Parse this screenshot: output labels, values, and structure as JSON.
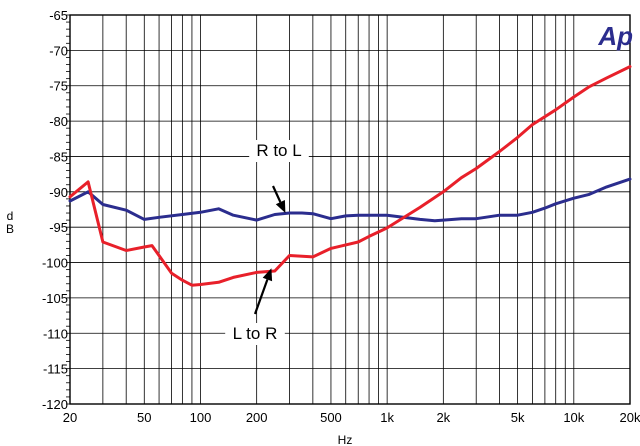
{
  "chart_data": {
    "type": "line",
    "logo": "Ap",
    "xlabel": "Hz",
    "ylabel": "dB",
    "xscale": "log",
    "xlim": [
      20,
      20000
    ],
    "ylim": [
      -120,
      -65
    ],
    "grid": true,
    "x_ticks": [
      {
        "value": 20,
        "label": "20"
      },
      {
        "value": 50,
        "label": "50"
      },
      {
        "value": 100,
        "label": "100"
      },
      {
        "value": 200,
        "label": "200"
      },
      {
        "value": 500,
        "label": "500"
      },
      {
        "value": 1000,
        "label": "1k"
      },
      {
        "value": 2000,
        "label": "2k"
      },
      {
        "value": 5000,
        "label": "5k"
      },
      {
        "value": 10000,
        "label": "10k"
      },
      {
        "value": 20000,
        "label": "20k"
      }
    ],
    "y_ticks": [
      {
        "value": -65,
        "label": "-65"
      },
      {
        "value": -70,
        "label": "-70"
      },
      {
        "value": -75,
        "label": "-75"
      },
      {
        "value": -80,
        "label": "-80"
      },
      {
        "value": -85,
        "label": "-85"
      },
      {
        "value": -90,
        "label": "-90"
      },
      {
        "value": -95,
        "label": "-95"
      },
      {
        "value": -100,
        "label": "-100"
      },
      {
        "value": -105,
        "label": "-105"
      },
      {
        "value": -110,
        "label": "-110"
      },
      {
        "value": -115,
        "label": "-115"
      },
      {
        "value": -120,
        "label": "-120"
      }
    ],
    "series": [
      {
        "key": "r_to_l",
        "color": "#2b2d8e",
        "points": [
          [
            20,
            -91.3
          ],
          [
            25,
            -90.0
          ],
          [
            30,
            -91.8
          ],
          [
            40,
            -92.6
          ],
          [
            50,
            -93.9
          ],
          [
            60,
            -93.6
          ],
          [
            80,
            -93.2
          ],
          [
            100,
            -92.9
          ],
          [
            125,
            -92.4
          ],
          [
            150,
            -93.3
          ],
          [
            200,
            -94.0
          ],
          [
            250,
            -93.2
          ],
          [
            300,
            -93.0
          ],
          [
            350,
            -93.0
          ],
          [
            400,
            -93.1
          ],
          [
            500,
            -93.8
          ],
          [
            600,
            -93.4
          ],
          [
            700,
            -93.3
          ],
          [
            800,
            -93.3
          ],
          [
            1000,
            -93.3
          ],
          [
            1500,
            -93.9
          ],
          [
            1800,
            -94.1
          ],
          [
            2000,
            -94.0
          ],
          [
            2500,
            -93.8
          ],
          [
            3000,
            -93.8
          ],
          [
            4000,
            -93.3
          ],
          [
            5000,
            -93.3
          ],
          [
            6000,
            -92.9
          ],
          [
            7000,
            -92.3
          ],
          [
            8000,
            -91.7
          ],
          [
            10000,
            -90.9
          ],
          [
            12000,
            -90.4
          ],
          [
            15000,
            -89.3
          ],
          [
            20000,
            -88.2
          ]
        ]
      },
      {
        "key": "l_to_r",
        "color": "#e8202a",
        "points": [
          [
            20,
            -90.7
          ],
          [
            25,
            -88.6
          ],
          [
            30,
            -97.1
          ],
          [
            40,
            -98.3
          ],
          [
            50,
            -97.8
          ],
          [
            55,
            -97.6
          ],
          [
            70,
            -101.5
          ],
          [
            80,
            -102.5
          ],
          [
            90,
            -103.2
          ],
          [
            100,
            -103.1
          ],
          [
            125,
            -102.8
          ],
          [
            150,
            -102.1
          ],
          [
            200,
            -101.4
          ],
          [
            250,
            -101.2
          ],
          [
            300,
            -99.0
          ],
          [
            400,
            -99.2
          ],
          [
            500,
            -98.0
          ],
          [
            600,
            -97.5
          ],
          [
            700,
            -97.1
          ],
          [
            800,
            -96.3
          ],
          [
            1000,
            -95.1
          ],
          [
            1500,
            -92.2
          ],
          [
            2000,
            -90.0
          ],
          [
            2500,
            -88.0
          ],
          [
            3000,
            -86.7
          ],
          [
            4000,
            -84.3
          ],
          [
            5000,
            -82.3
          ],
          [
            6000,
            -80.5
          ],
          [
            8000,
            -78.4
          ],
          [
            10000,
            -76.6
          ],
          [
            12000,
            -75.2
          ],
          [
            15000,
            -73.9
          ],
          [
            20000,
            -72.3
          ]
        ]
      }
    ],
    "annotations": [
      {
        "key": "r_to_l",
        "text": "R to L",
        "arrow_to": [
          285,
          -93.0
        ]
      },
      {
        "key": "l_to_r",
        "text": "L to R",
        "arrow_to": [
          240,
          -100.8
        ]
      }
    ]
  }
}
